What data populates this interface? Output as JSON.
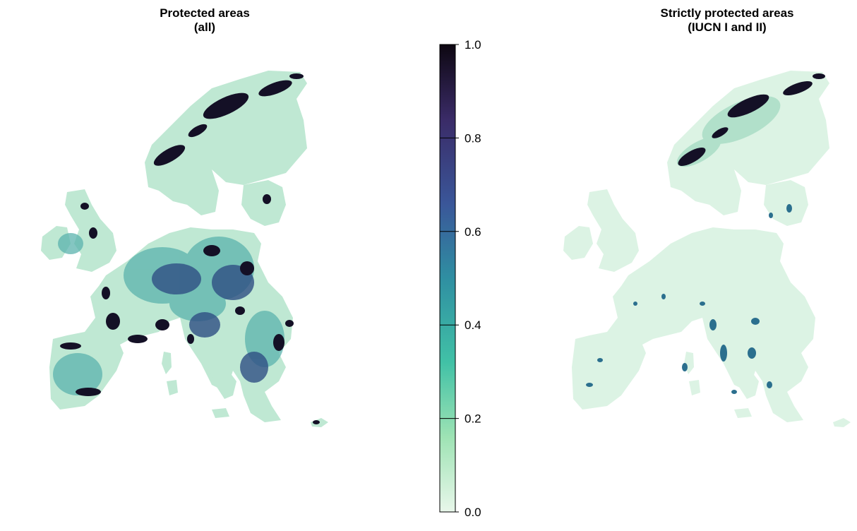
{
  "panels": [
    {
      "title_line1": "Protected areas",
      "title_line2": "(all)"
    },
    {
      "title_line1": "Strictly protected areas",
      "title_line2": "(IUCN I and II)"
    }
  ],
  "colorbar": {
    "min": 0.0,
    "max": 1.0,
    "ticks": [
      "0.0",
      "0.2",
      "0.4",
      "0.6",
      "0.8",
      "1.0"
    ],
    "colors": [
      "#e8f7ea",
      "#9ee3b4",
      "#41c1a6",
      "#2f8fa2",
      "#3a5699",
      "#3a2b67",
      "#0d0711"
    ]
  },
  "colors": {
    "land_low": "#d9f2e3",
    "land_mid": "#3aa6a5",
    "land_high": "#141026"
  }
}
